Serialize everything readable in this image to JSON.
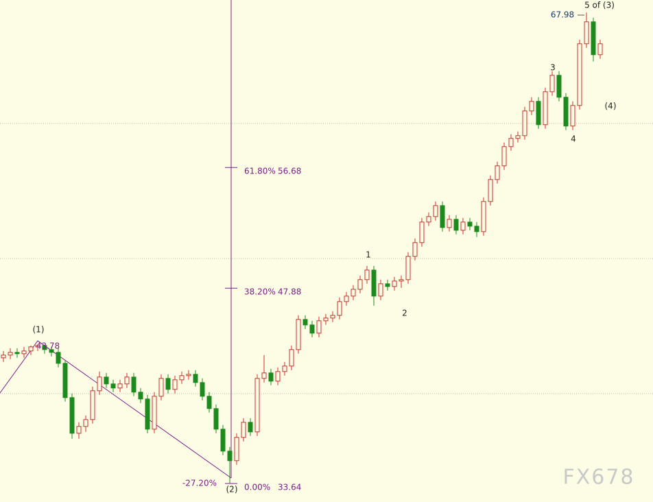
{
  "chart_data": {
    "type": "candlestick",
    "ylim": [
      32.29,
      68.89
    ],
    "up_color": "#d42a2a",
    "down_color": "#1d8a1d",
    "open": [
      42.8,
      43.0,
      43.2,
      43.1,
      43.3,
      43.6,
      43.7,
      43.4,
      43.2,
      42.4,
      39.9,
      37.3,
      37.8,
      38.3,
      40.4,
      41.4,
      40.9,
      40.6,
      40.9,
      41.4,
      40.3,
      39.8,
      37.6,
      40.0,
      41.3,
      40.5,
      41.2,
      41.5,
      41.6,
      41.0,
      40.0,
      39.1,
      37.6,
      36.0,
      35.3,
      37.0,
      38.1,
      37.4,
      41.3,
      41.7,
      41.1,
      41.8,
      42.2,
      43.4,
      45.6,
      45.2,
      44.6,
      45.5,
      45.7,
      45.9,
      46.9,
      47.3,
      47.8,
      48.5,
      49.2,
      47.3,
      48.2,
      48.0,
      48.4,
      48.5,
      50.2,
      51.2,
      52.7,
      53.1,
      53.9,
      52.3,
      52.9,
      52.1,
      52.7,
      52.4,
      52.0,
      54.2,
      55.8,
      56.8,
      58.2,
      58.8,
      59.0,
      60.8,
      61.5,
      59.8,
      62.2,
      63.4,
      61.8,
      59.7,
      61.2,
      65.7,
      67.3,
      64.9
    ],
    "high": [
      43.3,
      43.5,
      43.5,
      43.6,
      43.7,
      43.78,
      43.7,
      43.6,
      43.5,
      42.6,
      40.2,
      38.1,
      38.6,
      40.7,
      41.8,
      41.7,
      41.2,
      41.2,
      41.7,
      41.7,
      40.6,
      40.1,
      40.3,
      41.6,
      41.6,
      41.5,
      41.8,
      41.9,
      41.9,
      41.3,
      40.3,
      39.4,
      37.9,
      36.3,
      37.3,
      38.4,
      38.4,
      41.6,
      43.0,
      42.0,
      42.1,
      42.5,
      43.7,
      45.9,
      45.9,
      45.5,
      45.8,
      46.0,
      46.2,
      47.2,
      47.6,
      48.1,
      48.8,
      49.5,
      49.5,
      48.5,
      48.5,
      48.7,
      48.8,
      50.5,
      51.5,
      53.0,
      53.4,
      54.2,
      54.2,
      53.2,
      53.2,
      53.0,
      53.0,
      52.7,
      54.5,
      56.1,
      57.1,
      58.5,
      59.1,
      59.3,
      61.1,
      61.8,
      61.8,
      62.5,
      63.7,
      63.7,
      62.1,
      61.5,
      66.0,
      67.98,
      67.6,
      66.0
    ],
    "low": [
      42.5,
      42.7,
      42.8,
      42.8,
      43.0,
      43.3,
      43.1,
      42.9,
      42.1,
      39.6,
      36.9,
      36.9,
      37.4,
      38.0,
      40.1,
      40.6,
      40.3,
      40.3,
      40.6,
      40.0,
      39.5,
      37.3,
      37.3,
      39.7,
      40.2,
      40.2,
      40.9,
      41.2,
      40.7,
      39.7,
      38.8,
      37.3,
      35.7,
      33.64,
      35.0,
      36.7,
      37.1,
      37.1,
      41.0,
      40.8,
      40.8,
      41.5,
      41.9,
      43.1,
      44.9,
      44.3,
      44.3,
      45.2,
      45.4,
      45.6,
      46.6,
      47.0,
      47.5,
      48.2,
      46.6,
      47.0,
      47.7,
      47.7,
      47.9,
      48.2,
      49.9,
      50.9,
      52.4,
      52.8,
      52.0,
      52.0,
      51.8,
      51.8,
      52.1,
      51.6,
      51.7,
      53.9,
      55.5,
      56.5,
      57.9,
      58.5,
      58.7,
      60.5,
      59.5,
      59.5,
      61.9,
      61.5,
      59.4,
      59.4,
      60.9,
      65.4,
      64.4,
      64.6
    ],
    "close": [
      43.0,
      43.2,
      43.1,
      43.3,
      43.6,
      43.7,
      43.4,
      43.2,
      42.4,
      39.9,
      37.3,
      37.8,
      38.3,
      40.4,
      41.4,
      40.9,
      40.6,
      40.9,
      41.4,
      40.3,
      39.8,
      37.6,
      40.0,
      41.3,
      40.5,
      41.2,
      41.5,
      41.6,
      41.0,
      40.0,
      39.1,
      37.6,
      36.0,
      35.3,
      37.0,
      38.1,
      37.4,
      41.3,
      41.7,
      41.1,
      41.8,
      42.2,
      43.4,
      45.6,
      45.2,
      44.6,
      45.5,
      45.7,
      45.9,
      46.9,
      47.3,
      47.8,
      48.5,
      49.2,
      47.3,
      48.2,
      48.0,
      48.4,
      48.5,
      50.2,
      51.2,
      52.7,
      53.1,
      53.9,
      52.3,
      52.9,
      52.1,
      52.7,
      52.4,
      52.0,
      54.2,
      55.8,
      56.8,
      58.2,
      58.8,
      59.0,
      60.8,
      61.5,
      59.8,
      62.2,
      63.4,
      61.8,
      59.7,
      61.2,
      65.7,
      67.3,
      64.9,
      65.7
    ],
    "fib_levels": [
      {
        "percent": "61.80%",
        "price": 56.68
      },
      {
        "percent": "38.20%",
        "price": 47.88
      },
      {
        "percent": "0.00%",
        "price": 33.64
      }
    ],
    "fib_extension": "-27.20%",
    "fib_color": "#7a1f86",
    "wave_labels": [
      "(1)",
      "(2)",
      "1",
      "2",
      "3",
      "4",
      "5 of (3)",
      "(4)"
    ],
    "price_labels": [
      43.78,
      67.98
    ],
    "watermark": "FX678"
  }
}
